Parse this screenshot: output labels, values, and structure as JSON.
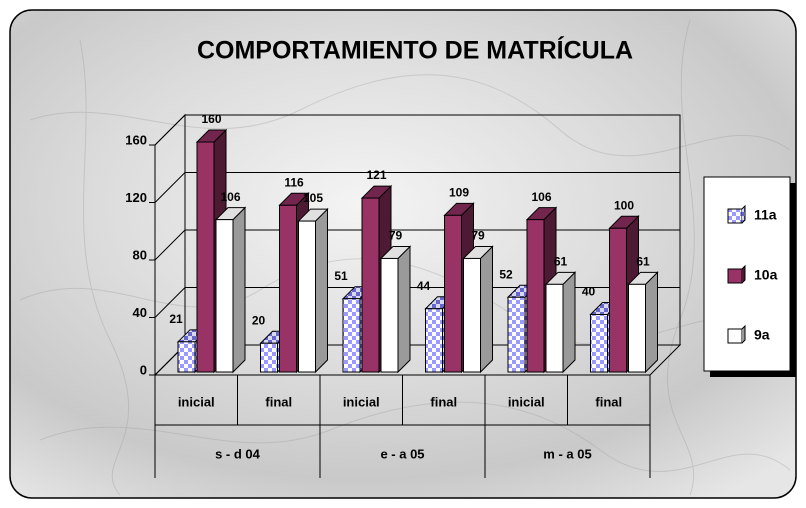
{
  "chart_data": {
    "type": "bar3d",
    "title": "COMPORTAMIENTO DE MATRÍCULA",
    "categories": [
      "inicial",
      "final",
      "inicial",
      "final",
      "inicial",
      "final"
    ],
    "category_groups": [
      "s - d 04",
      "e - a 05",
      "m - a 05"
    ],
    "series": [
      {
        "name": "11a",
        "color": "#9999ff",
        "values": [
          21,
          20,
          51,
          44,
          52,
          40
        ]
      },
      {
        "name": "10a",
        "color": "#993366",
        "values": [
          160,
          116,
          121,
          109,
          106,
          100
        ]
      },
      {
        "name": "9a",
        "color": "#ffffff",
        "values": [
          106,
          105,
          79,
          79,
          61,
          61
        ]
      }
    ],
    "ylim": [
      0,
      160
    ],
    "yticks": [
      0,
      40,
      80,
      120,
      160
    ],
    "grid": true,
    "legend": "right"
  }
}
